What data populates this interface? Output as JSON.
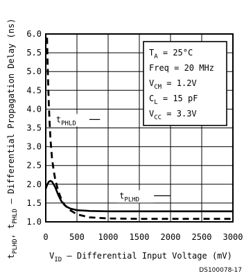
{
  "chart_data": {
    "type": "line",
    "ylabel": "tPLHD, tPHLD - Differential Propagation Delay (ns)",
    "ylabel_parts": {
      "t1": "t",
      "s1": "PLHD",
      "sep": ", ",
      "t2": "t",
      "s2": "PHLD",
      "rest": " – Differential Propagation Delay (ns)"
    },
    "xlabel": "VID - Differential Input Voltage (mV)",
    "xlabel_parts": {
      "v": "V",
      "sub": "ID",
      "rest": " – Differential Input Voltage (mV)"
    },
    "xlim": [
      0,
      3000
    ],
    "ylim": [
      1.0,
      6.0
    ],
    "x_ticks": [
      "0",
      "500",
      "1000",
      "1500",
      "2000",
      "2500",
      "3000"
    ],
    "y_ticks": [
      "1.0",
      "1.5",
      "2.0",
      "2.5",
      "3.0",
      "3.5",
      "4.0",
      "4.5",
      "5.0",
      "5.5",
      "6.0"
    ],
    "grid": true,
    "conditions": [
      {
        "main": "T",
        "sub": "A",
        "tail": " = 25°C"
      },
      {
        "main": "Freq = 20 MHz",
        "sub": "",
        "tail": ""
      },
      {
        "main": "V",
        "sub": "CM",
        "tail": " = 1.2V"
      },
      {
        "main": "C",
        "sub": "L",
        "tail": " = 15 pF"
      },
      {
        "main": "V",
        "sub": "CC",
        "tail": " = 3.3V"
      }
    ],
    "series": [
      {
        "name": "tPLHD",
        "label_main": "t",
        "label_sub": "PLHD",
        "style": "solid",
        "x": [
          0,
          25,
          50,
          75,
          100,
          150,
          200,
          250,
          300,
          350,
          400,
          500,
          700,
          1000,
          1500,
          2000,
          2500,
          3000
        ],
        "y": [
          1.88,
          2.0,
          2.07,
          2.09,
          2.07,
          1.93,
          1.72,
          1.55,
          1.45,
          1.39,
          1.35,
          1.31,
          1.29,
          1.28,
          1.28,
          1.28,
          1.28,
          1.28
        ]
      },
      {
        "name": "tPHLD",
        "label_main": "t",
        "label_sub": "PHLD",
        "style": "dashed",
        "x": [
          20,
          30,
          40,
          50,
          60,
          75,
          100,
          125,
          150,
          200,
          250,
          300,
          400,
          500,
          700,
          1000,
          1500,
          2000,
          2500,
          3000
        ],
        "y": [
          5.9,
          5.2,
          4.6,
          4.1,
          3.7,
          3.2,
          2.7,
          2.38,
          2.15,
          1.82,
          1.6,
          1.45,
          1.3,
          1.2,
          1.12,
          1.09,
          1.08,
          1.08,
          1.08,
          1.08
        ]
      }
    ],
    "source_id": "DS100078-17"
  }
}
